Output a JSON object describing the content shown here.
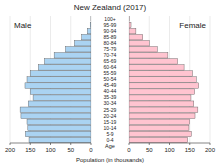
{
  "chart_data": {
    "type": "bar",
    "orientation": "horizontal",
    "title": "New Zealand (2017)",
    "xlabel": "Population (in thousands)",
    "ylabel": "Age",
    "categories": [
      "0-4",
      "5-9",
      "10-14",
      "15-19",
      "20-24",
      "25-29",
      "30-34",
      "35-39",
      "40-44",
      "45-49",
      "50-54",
      "55-59",
      "60-64",
      "65-69",
      "70-74",
      "75-79",
      "80-84",
      "85-89",
      "90-94",
      "95-99",
      "100+"
    ],
    "series": [
      {
        "name": "Male",
        "color": "#aad3f2",
        "values": [
          153,
          162,
          156,
          158,
          173,
          175,
          155,
          143,
          150,
          163,
          158,
          150,
          130,
          115,
          91,
          63,
          41,
          23,
          9,
          2,
          0.2
        ]
      },
      {
        "name": "Female",
        "color": "#ffc4d0",
        "values": [
          145,
          154,
          148,
          150,
          163,
          170,
          160,
          153,
          162,
          172,
          166,
          157,
          136,
          120,
          96,
          70,
          50,
          34,
          17,
          5,
          0.6
        ]
      }
    ],
    "xlim": [
      0,
      200
    ],
    "xticks": [
      0,
      50,
      100,
      150,
      200
    ],
    "grid": true
  }
}
